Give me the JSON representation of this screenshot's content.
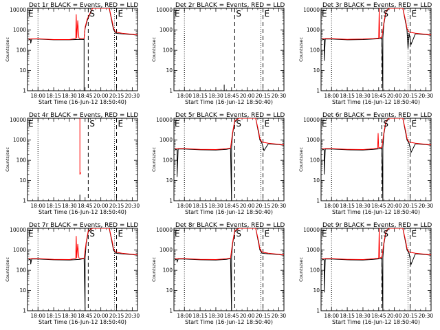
{
  "chart_data": {
    "type": "line",
    "panel_count": 9,
    "layout": "3x3",
    "x_tick_labels": [
      "18:00",
      "18:15",
      "18:30",
      "18:45",
      "20:00",
      "20:15",
      "20:30"
    ],
    "x_ticks_minutes_after_1800": [
      0,
      15,
      30,
      45,
      60,
      75,
      90
    ],
    "xlim_minutes_after_1800": [
      -10,
      95
    ],
    "y_scale": "log",
    "y_tick_labels": [
      "1",
      "10",
      "100",
      "1000",
      "10000"
    ],
    "ylim": [
      1,
      12000
    ],
    "xlabel": "Start Time (16-Jun-12 18:50:40)",
    "ylabel": "Counts/sec",
    "series_colors": {
      "events": "#000000",
      "lld": "#ff0000"
    },
    "vertical_lines": [
      {
        "x": 0,
        "style": "dotted"
      },
      {
        "x": 48,
        "style": "dashed",
        "marker": "S"
      },
      {
        "x": 73,
        "style": "dotted"
      },
      {
        "x": 75,
        "style": "dashed",
        "marker": "E"
      }
    ],
    "panels": [
      {
        "title": "Det 1r BLACK = Events, RED = LLD",
        "markers": {
          "left": "E",
          "s": "S",
          "e": "E"
        },
        "events": {
          "x": [
            -9,
            -7,
            -7,
            -6,
            0,
            15,
            30,
            40,
            44,
            44,
            44,
            45,
            47,
            52,
            60,
            68,
            71,
            72,
            74,
            80,
            90,
            95
          ],
          "y": [
            340,
            330,
            220,
            360,
            360,
            330,
            330,
            350,
            340,
            1,
            380,
            1200,
            3000,
            12000,
            12000,
            12000,
            2000,
            1100,
            700,
            650,
            600,
            560
          ]
        },
        "lld": {
          "x": [
            -9,
            0,
            15,
            30,
            36,
            36.5,
            37,
            38,
            39,
            40,
            44,
            45,
            47,
            52,
            60,
            68,
            71,
            72,
            74,
            80,
            90,
            95
          ],
          "y": [
            360,
            370,
            340,
            340,
            380,
            6000,
            400,
            3000,
            420,
            380,
            390,
            1400,
            3500,
            12000,
            12000,
            12000,
            2500,
            1300,
            800,
            700,
            620,
            580
          ]
        }
      },
      {
        "title": "Det 2r BLACK = Events, RED = LLD",
        "markers": {
          "left": "E",
          "s": "S",
          "e": "E"
        },
        "events": {
          "x": [
            38,
            38,
            38
          ],
          "y": [
            1,
            2,
            1
          ]
        },
        "lld": {
          "x": [],
          "y": []
        }
      },
      {
        "title": "Det 3r BLACK = Events, RED = LLD",
        "markers": {
          "left": "E",
          "s": "S",
          "e": "E"
        },
        "events": {
          "x": [
            -9,
            -7,
            -7,
            -6,
            0,
            15,
            30,
            40,
            48,
            49,
            49,
            50,
            52,
            55,
            60,
            68,
            71,
            72,
            73,
            74,
            76,
            80,
            90,
            95
          ],
          "y": [
            350,
            340,
            30,
            360,
            360,
            330,
            340,
            360,
            380,
            1,
            420,
            2000,
            8000,
            12000,
            12000,
            12000,
            2000,
            1000,
            120,
            700,
            200,
            650,
            600,
            560
          ]
        },
        "lld": {
          "x": [
            -9,
            0,
            15,
            30,
            40,
            45,
            45.5,
            46,
            48,
            50,
            52,
            55,
            60,
            68,
            71,
            72,
            74,
            80,
            90,
            95
          ],
          "y": [
            380,
            380,
            350,
            360,
            380,
            400,
            12000,
            420,
            420,
            2400,
            9000,
            12000,
            12000,
            12000,
            2500,
            1200,
            800,
            700,
            620,
            580
          ]
        }
      },
      {
        "title": "Det 4r BLACK = Events, RED = LLD",
        "markers": {
          "left": "E",
          "s": "S",
          "e": "E"
        },
        "events": {
          "x": [
            40,
            40,
            40
          ],
          "y": [
            1,
            2,
            1
          ]
        },
        "lld": {
          "x": [
            40,
            40,
            41
          ],
          "y": [
            12000,
            20,
            25
          ]
        }
      },
      {
        "title": "Det 5r BLACK = Events, RED = LLD",
        "markers": {
          "left": "E",
          "s": "S",
          "e": "E"
        },
        "events": {
          "x": [
            -9,
            -7,
            -7,
            -6,
            0,
            15,
            30,
            40,
            44,
            45,
            45,
            46,
            48,
            52,
            60,
            68,
            71,
            72,
            74,
            76,
            80,
            90,
            95
          ],
          "y": [
            350,
            330,
            15,
            360,
            360,
            330,
            320,
            350,
            380,
            1,
            420,
            2000,
            8000,
            12000,
            12000,
            12000,
            2000,
            1000,
            700,
            300,
            650,
            600,
            560
          ]
        },
        "lld": {
          "x": [
            -9,
            0,
            15,
            30,
            40,
            44,
            46,
            48,
            52,
            60,
            68,
            71,
            72,
            74,
            80,
            90,
            95
          ],
          "y": [
            380,
            380,
            350,
            340,
            370,
            400,
            2400,
            9000,
            12000,
            12000,
            12000,
            2500,
            1200,
            800,
            700,
            620,
            580
          ]
        }
      },
      {
        "title": "Det 6r BLACK = Events, RED = LLD",
        "markers": {
          "left": "E",
          "s": "S",
          "e": "E"
        },
        "events": {
          "x": [
            -9,
            -7,
            -7,
            -6,
            0,
            15,
            30,
            40,
            48,
            49,
            49,
            50,
            52,
            55,
            60,
            68,
            71,
            72,
            74,
            76,
            80,
            90,
            95
          ],
          "y": [
            350,
            330,
            20,
            360,
            360,
            330,
            320,
            350,
            380,
            1,
            420,
            2000,
            8000,
            12000,
            12000,
            12000,
            2000,
            1000,
            700,
            250,
            650,
            600,
            560
          ]
        },
        "lld": {
          "x": [
            -9,
            0,
            15,
            30,
            40,
            44,
            44.5,
            45,
            48,
            50,
            52,
            55,
            60,
            68,
            71,
            72,
            74,
            80,
            90,
            95
          ],
          "y": [
            380,
            380,
            350,
            340,
            370,
            400,
            2200,
            420,
            420,
            2400,
            9000,
            12000,
            12000,
            12000,
            2500,
            1200,
            800,
            700,
            620,
            580
          ]
        }
      },
      {
        "title": "Det 7r BLACK = Events, RED = LLD",
        "markers": {
          "left": "E",
          "s": "S",
          "e": "E"
        },
        "events": {
          "x": [
            -9,
            -7,
            -7,
            -6,
            0,
            15,
            30,
            40,
            44,
            45,
            45,
            46,
            48,
            52,
            60,
            68,
            71,
            72,
            74,
            80,
            90,
            95
          ],
          "y": [
            350,
            330,
            200,
            360,
            360,
            330,
            320,
            350,
            380,
            1,
            420,
            2000,
            8000,
            12000,
            12000,
            12000,
            2000,
            1000,
            700,
            650,
            600,
            560
          ]
        },
        "lld": {
          "x": [
            -9,
            0,
            15,
            30,
            36,
            36.5,
            37,
            38,
            39,
            40,
            44,
            46,
            48,
            52,
            60,
            68,
            71,
            72,
            74,
            80,
            90,
            95
          ],
          "y": [
            380,
            380,
            350,
            340,
            380,
            5000,
            400,
            2000,
            420,
            380,
            400,
            2400,
            9000,
            12000,
            12000,
            12000,
            2500,
            1200,
            800,
            700,
            620,
            580
          ]
        }
      },
      {
        "title": "Det 8r BLACK = Events, RED = LLD",
        "markers": {
          "left": "E",
          "s": "S",
          "e": "E"
        },
        "events": {
          "x": [
            -9,
            -7,
            -7,
            -6,
            0,
            15,
            30,
            40,
            44,
            45,
            45,
            46,
            48,
            52,
            60,
            68,
            71,
            72,
            74,
            80,
            90,
            95
          ],
          "y": [
            350,
            330,
            250,
            360,
            360,
            330,
            320,
            350,
            380,
            1,
            420,
            2000,
            8000,
            12000,
            12000,
            12000,
            2000,
            1000,
            700,
            650,
            600,
            560
          ]
        },
        "lld": {
          "x": [
            -9,
            0,
            15,
            30,
            40,
            44,
            46,
            48,
            52,
            60,
            68,
            71,
            72,
            74,
            80,
            90,
            95
          ],
          "y": [
            380,
            380,
            350,
            340,
            370,
            400,
            2400,
            9000,
            12000,
            12000,
            12000,
            2500,
            1200,
            800,
            700,
            620,
            580
          ]
        }
      },
      {
        "title": "Det 9r BLACK = Events, RED = LLD",
        "markers": {
          "left": "E",
          "s": "S",
          "e": "E"
        },
        "events": {
          "x": [
            -9,
            -7,
            -7,
            -6,
            0,
            15,
            30,
            40,
            48,
            49,
            49,
            50,
            52,
            55,
            60,
            68,
            71,
            72,
            74,
            76,
            80,
            90,
            95
          ],
          "y": [
            350,
            330,
            8,
            360,
            360,
            330,
            320,
            350,
            380,
            1,
            420,
            2000,
            8000,
            12000,
            12000,
            12000,
            2000,
            1000,
            700,
            200,
            650,
            600,
            560
          ]
        },
        "lld": {
          "x": [
            -9,
            0,
            15,
            30,
            40,
            45,
            45.5,
            46,
            48,
            50,
            52,
            55,
            60,
            68,
            71,
            72,
            74,
            80,
            90,
            95
          ],
          "y": [
            380,
            380,
            350,
            340,
            370,
            400,
            12000,
            420,
            420,
            2400,
            9000,
            12000,
            12000,
            12000,
            2500,
            1200,
            800,
            700,
            620,
            580
          ]
        }
      }
    ]
  }
}
